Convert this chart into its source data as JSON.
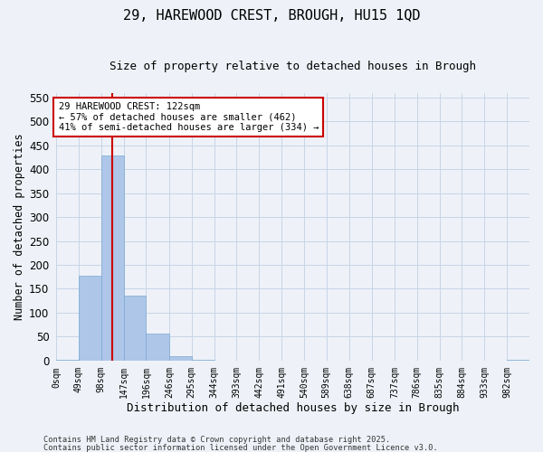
{
  "title1": "29, HAREWOOD CREST, BROUGH, HU15 1QD",
  "title2": "Size of property relative to detached houses in Brough",
  "xlabel": "Distribution of detached houses by size in Brough",
  "ylabel": "Number of detached properties",
  "bin_edges": [
    0,
    49,
    98,
    147,
    196,
    246,
    295,
    344,
    393,
    442,
    491,
    540,
    589,
    638,
    687,
    737,
    786,
    835,
    884,
    933,
    982,
    1031
  ],
  "bar_labels": [
    "0sqm",
    "49sqm",
    "98sqm",
    "147sqm",
    "196sqm",
    "246sqm",
    "295sqm",
    "344sqm",
    "393sqm",
    "442sqm",
    "491sqm",
    "540sqm",
    "589sqm",
    "638sqm",
    "687sqm",
    "737sqm",
    "786sqm",
    "835sqm",
    "884sqm",
    "933sqm",
    "982sqm"
  ],
  "bar_values": [
    2,
    178,
    428,
    136,
    57,
    10,
    2,
    0,
    0,
    0,
    0,
    0,
    0,
    0,
    0,
    0,
    0,
    0,
    0,
    0,
    2
  ],
  "bar_color": "#aec6e8",
  "bar_edge_color": "#7aaad0",
  "grid_color": "#c8d4e8",
  "background_color": "#eef2f8",
  "vline_x": 122,
  "vline_color": "#cc0000",
  "annotation_text": "29 HAREWOOD CREST: 122sqm\n← 57% of detached houses are smaller (462)\n41% of semi-detached houses are larger (334) →",
  "annotation_box_color": "#ffffff",
  "annotation_box_edge": "#cc0000",
  "ylim": [
    0,
    560
  ],
  "yticks": [
    0,
    50,
    100,
    150,
    200,
    250,
    300,
    350,
    400,
    450,
    500,
    550
  ],
  "footer1": "Contains HM Land Registry data © Crown copyright and database right 2025.",
  "footer2": "Contains public sector information licensed under the Open Government Licence v3.0."
}
